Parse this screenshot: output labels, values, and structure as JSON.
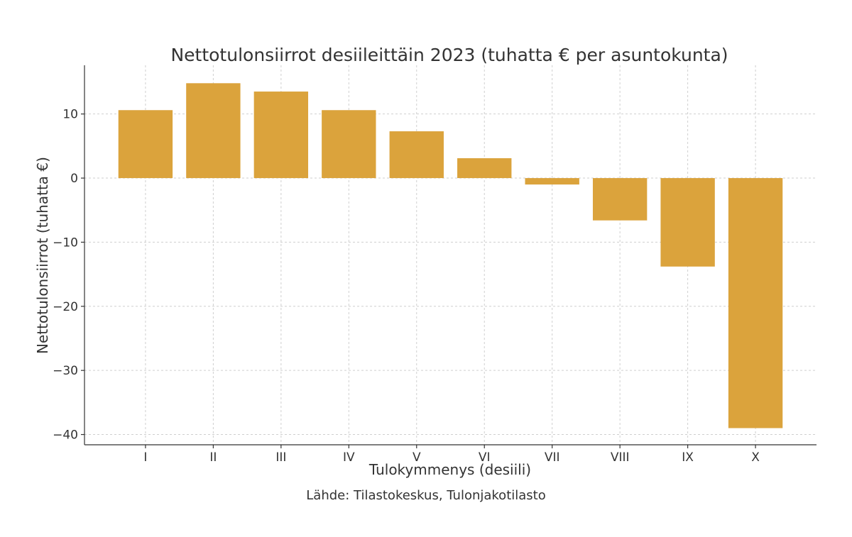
{
  "chart_data": {
    "type": "bar",
    "title": "Nettotulonsiirrot desiileittäin 2023 (tuhatta € per asuntokunta)",
    "xlabel": "Tulokymmenys (desiili)",
    "ylabel": "Nettotulonsiirrot (tuhatta €)",
    "categories": [
      "I",
      "II",
      "III",
      "IV",
      "V",
      "VI",
      "VII",
      "VIII",
      "IX",
      "X"
    ],
    "values": [
      10.6,
      14.8,
      13.5,
      10.6,
      7.3,
      3.1,
      -1.0,
      -6.6,
      -13.8,
      -39.0
    ],
    "ylim": [
      -41.6,
      17.6
    ],
    "yticks": [
      10,
      0,
      -10,
      -20,
      -30,
      -40
    ],
    "ytick_labels": [
      "10",
      "0",
      "−10",
      "−20",
      "−30",
      "−40"
    ],
    "bar_color": "#DBA33C",
    "grid": true,
    "source": "Lähde: Tilastokeskus, Tulonjakotilasto"
  }
}
